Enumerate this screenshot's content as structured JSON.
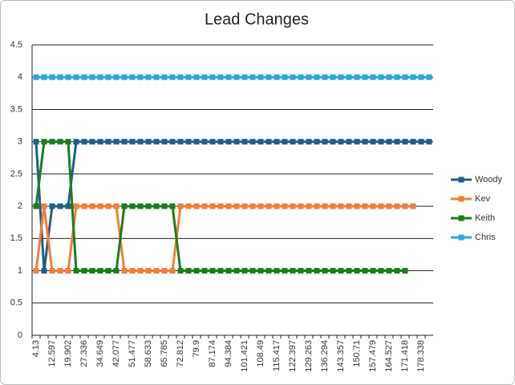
{
  "chart_data": {
    "type": "line",
    "title": "Lead Changes",
    "categories": [
      "4.13",
      null,
      "12.597",
      null,
      "19.902",
      null,
      "27.336",
      null,
      "34.649",
      null,
      "42.077",
      null,
      "51.477",
      null,
      "58.633",
      null,
      "65.785",
      null,
      "72.812",
      null,
      "79.9",
      null,
      "87.174",
      null,
      "94.384",
      null,
      "101.421",
      null,
      "108.49",
      null,
      "115.417",
      null,
      "122.397",
      null,
      "129.263",
      null,
      "136.294",
      null,
      "143.357",
      null,
      "150.71",
      null,
      "157.479",
      null,
      "164.527",
      null,
      "171.418",
      null,
      "178.338",
      null
    ],
    "series": [
      {
        "name": "Woody",
        "color": "#1f5f8b",
        "values": [
          3,
          1,
          2,
          2,
          2,
          3,
          3,
          3,
          3,
          3,
          3,
          3,
          3,
          3,
          3,
          3,
          3,
          3,
          3,
          3,
          3,
          3,
          3,
          3,
          3,
          3,
          3,
          3,
          3,
          3,
          3,
          3,
          3,
          3,
          3,
          3,
          3,
          3,
          3,
          3,
          3,
          3,
          3,
          3,
          3,
          3,
          3,
          3,
          3,
          3
        ]
      },
      {
        "name": "Kev",
        "color": "#f07f3c",
        "values": [
          1,
          2,
          1,
          1,
          1,
          2,
          2,
          2,
          2,
          2,
          2,
          1,
          1,
          1,
          1,
          1,
          1,
          1,
          2,
          2,
          2,
          2,
          2,
          2,
          2,
          2,
          2,
          2,
          2,
          2,
          2,
          2,
          2,
          2,
          2,
          2,
          2,
          2,
          2,
          2,
          2,
          2,
          2,
          2,
          2,
          2,
          2,
          2,
          null,
          null
        ]
      },
      {
        "name": "Keith",
        "color": "#1e7b1e",
        "values": [
          2,
          3,
          3,
          3,
          3,
          1,
          1,
          1,
          1,
          1,
          1,
          2,
          2,
          2,
          2,
          2,
          2,
          2,
          1,
          1,
          1,
          1,
          1,
          1,
          1,
          1,
          1,
          1,
          1,
          1,
          1,
          1,
          1,
          1,
          1,
          1,
          1,
          1,
          1,
          1,
          1,
          1,
          1,
          1,
          1,
          1,
          1,
          null,
          null,
          null
        ]
      },
      {
        "name": "Chris",
        "color": "#2aa7dd",
        "values": [
          4,
          4,
          4,
          4,
          4,
          4,
          4,
          4,
          4,
          4,
          4,
          4,
          4,
          4,
          4,
          4,
          4,
          4,
          4,
          4,
          4,
          4,
          4,
          4,
          4,
          4,
          4,
          4,
          4,
          4,
          4,
          4,
          4,
          4,
          4,
          4,
          4,
          4,
          4,
          4,
          4,
          4,
          4,
          4,
          4,
          4,
          4,
          4,
          4,
          4
        ]
      }
    ],
    "ylim": [
      0,
      4.5
    ],
    "yticks": [
      0,
      0.5,
      1,
      1.5,
      2,
      2.5,
      3,
      3.5,
      4,
      4.5
    ],
    "grid": true,
    "legend": "right"
  }
}
